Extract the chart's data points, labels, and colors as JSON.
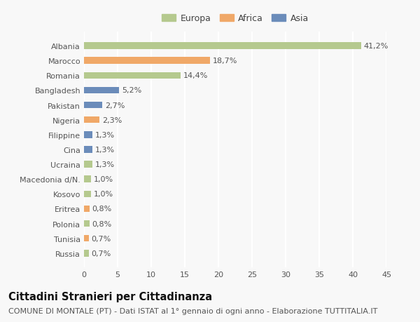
{
  "categories": [
    "Albania",
    "Marocco",
    "Romania",
    "Bangladesh",
    "Pakistan",
    "Nigeria",
    "Filippine",
    "Cina",
    "Ucraina",
    "Macedonia d/N.",
    "Kosovo",
    "Eritrea",
    "Polonia",
    "Tunisia",
    "Russia"
  ],
  "values": [
    41.2,
    18.7,
    14.4,
    5.2,
    2.7,
    2.3,
    1.3,
    1.3,
    1.3,
    1.0,
    1.0,
    0.8,
    0.8,
    0.7,
    0.7
  ],
  "labels": [
    "41,2%",
    "18,7%",
    "14,4%",
    "5,2%",
    "2,7%",
    "2,3%",
    "1,3%",
    "1,3%",
    "1,3%",
    "1,0%",
    "1,0%",
    "0,8%",
    "0,8%",
    "0,7%",
    "0,7%"
  ],
  "colors": [
    "#b5c98e",
    "#f0a868",
    "#b5c98e",
    "#6b8cba",
    "#6b8cba",
    "#f0a868",
    "#6b8cba",
    "#6b8cba",
    "#b5c98e",
    "#b5c98e",
    "#b5c98e",
    "#f0a868",
    "#b5c98e",
    "#f0a868",
    "#b5c98e"
  ],
  "legend_labels": [
    "Europa",
    "Africa",
    "Asia"
  ],
  "legend_colors": [
    "#b5c98e",
    "#f0a868",
    "#6b8cba"
  ],
  "xlim": [
    0,
    45
  ],
  "xticks": [
    0,
    5,
    10,
    15,
    20,
    25,
    30,
    35,
    40,
    45
  ],
  "title": "Cittadini Stranieri per Cittadinanza",
  "subtitle": "COMUNE DI MONTALE (PT) - Dati ISTAT al 1° gennaio di ogni anno - Elaborazione TUTTITALIA.IT",
  "background_color": "#f8f8f8",
  "grid_color": "#ffffff",
  "bar_height": 0.45,
  "title_fontsize": 10.5,
  "subtitle_fontsize": 8,
  "tick_fontsize": 8,
  "label_fontsize": 8
}
